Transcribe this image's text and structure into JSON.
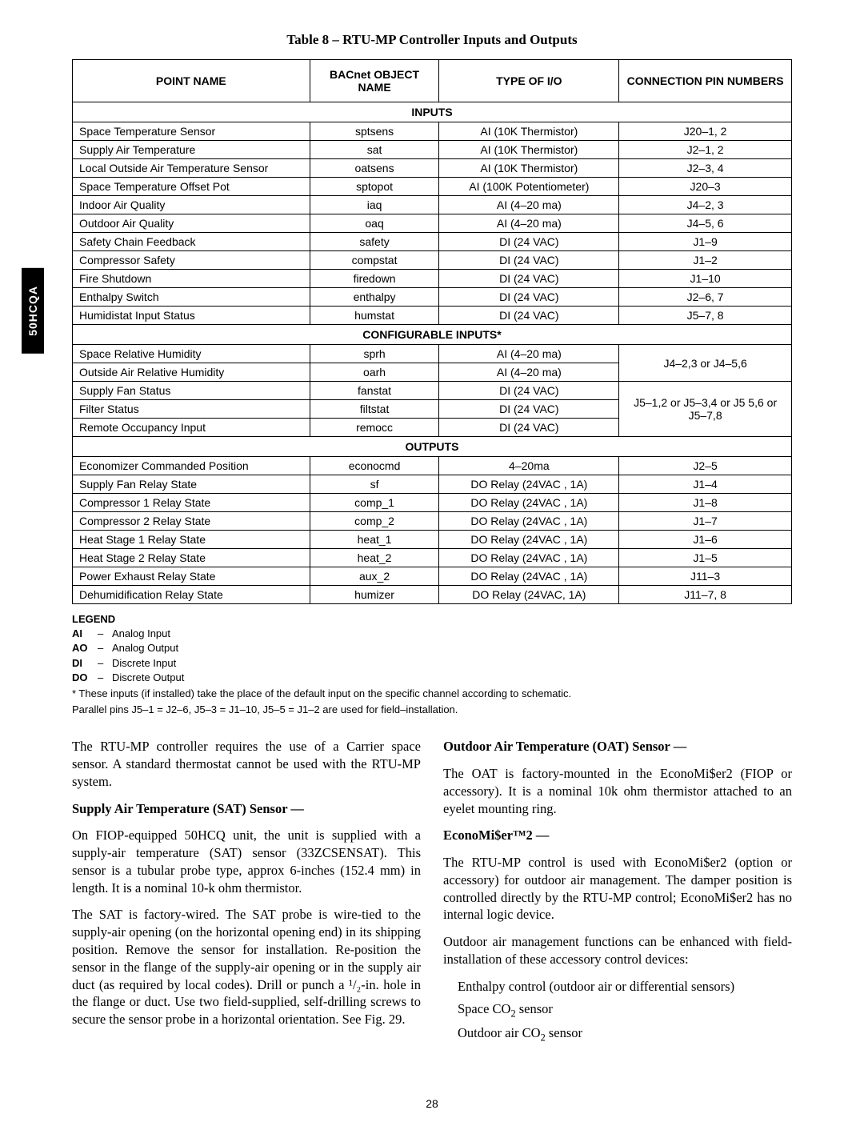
{
  "side_tab": "50HCQA",
  "table_title": "Table 8 – RTU-MP Controller Inputs and Outputs",
  "headers": {
    "point_name": "POINT NAME",
    "bacnet": "BACnet OBJECT NAME",
    "type": "TYPE OF I/O",
    "conn": "CONNECTION PIN NUMBERS"
  },
  "sections": {
    "inputs": "INPUTS",
    "config": "CONFIGURABLE INPUTS*",
    "outputs": "OUTPUTS"
  },
  "inputs": [
    {
      "pn": "Space Temperature Sensor",
      "bn": "sptsens",
      "ty": "AI (10K Thermistor)",
      "cp": "J20–1, 2"
    },
    {
      "pn": "Supply Air Temperature",
      "bn": "sat",
      "ty": "AI (10K Thermistor)",
      "cp": "J2–1, 2"
    },
    {
      "pn": "Local Outside Air Temperature Sensor",
      "bn": "oatsens",
      "ty": "AI (10K Thermistor)",
      "cp": "J2–3, 4"
    },
    {
      "pn": "Space Temperature Offset Pot",
      "bn": "sptopot",
      "ty": "AI (100K Potentiometer)",
      "cp": "J20–3"
    },
    {
      "pn": "Indoor Air Quality",
      "bn": "iaq",
      "ty": "AI (4–20 ma)",
      "cp": "J4–2, 3"
    },
    {
      "pn": "Outdoor Air Quality",
      "bn": "oaq",
      "ty": "AI (4–20 ma)",
      "cp": "J4–5, 6"
    },
    {
      "pn": "Safety Chain Feedback",
      "bn": "safety",
      "ty": "DI (24 VAC)",
      "cp": "J1–9"
    },
    {
      "pn": "Compressor Safety",
      "bn": "compstat",
      "ty": "DI (24 VAC)",
      "cp": "J1–2"
    },
    {
      "pn": "Fire Shutdown",
      "bn": "firedown",
      "ty": "DI (24 VAC)",
      "cp": "J1–10"
    },
    {
      "pn": "Enthalpy Switch",
      "bn": "enthalpy",
      "ty": "DI (24 VAC)",
      "cp": "J2–6, 7"
    },
    {
      "pn": "Humidistat Input Status",
      "bn": "humstat",
      "ty": "DI (24 VAC)",
      "cp": "J5–7, 8"
    }
  ],
  "config_inputs": {
    "groupA_cp": "J4–2,3 or J4–5,6",
    "groupA": [
      {
        "pn": "Space Relative Humidity",
        "bn": "sprh",
        "ty": "AI (4–20 ma)"
      },
      {
        "pn": "Outside Air Relative Humidity",
        "bn": "oarh",
        "ty": "AI (4–20 ma)"
      }
    ],
    "groupB_cp": "J5–1,2 or J5–3,4 or J5 5,6 or J5–7,8",
    "groupB": [
      {
        "pn": "Supply Fan Status",
        "bn": "fanstat",
        "ty": "DI (24 VAC)"
      },
      {
        "pn": "Filter Status",
        "bn": "filtstat",
        "ty": "DI (24 VAC)"
      },
      {
        "pn": "Remote Occupancy Input",
        "bn": "remocc",
        "ty": "DI (24 VAC)"
      }
    ]
  },
  "outputs": [
    {
      "pn": "Economizer Commanded Position",
      "bn": "econocmd",
      "ty": "4–20ma",
      "cp": "J2–5"
    },
    {
      "pn": "Supply Fan Relay State",
      "bn": "sf",
      "ty": "DO Relay (24VAC , 1A)",
      "cp": "J1–4"
    },
    {
      "pn": "Compressor 1 Relay State",
      "bn": "comp_1",
      "ty": "DO Relay (24VAC , 1A)",
      "cp": "J1–8"
    },
    {
      "pn": "Compressor 2 Relay State",
      "bn": "comp_2",
      "ty": "DO Relay (24VAC , 1A)",
      "cp": "J1–7"
    },
    {
      "pn": "Heat Stage 1 Relay State",
      "bn": "heat_1",
      "ty": "DO Relay (24VAC , 1A)",
      "cp": "J1–6"
    },
    {
      "pn": "Heat Stage 2 Relay State",
      "bn": "heat_2",
      "ty": "DO Relay (24VAC , 1A)",
      "cp": "J1–5"
    },
    {
      "pn": "Power Exhaust Relay State",
      "bn": "aux_2",
      "ty": "DO Relay (24VAC , 1A)",
      "cp": "J11–3"
    },
    {
      "pn": "Dehumidification Relay State",
      "bn": "humizer",
      "ty": "DO Relay (24VAC, 1A)",
      "cp": "J11–7, 8"
    }
  ],
  "legend": {
    "title": "LEGEND",
    "items": [
      {
        "abbr": "AI",
        "def": "Analog Input"
      },
      {
        "abbr": "AO",
        "def": "Analog Output"
      },
      {
        "abbr": "DI",
        "def": "Discrete Input"
      },
      {
        "abbr": "DO",
        "def": "Discrete Output"
      }
    ],
    "star": "*   These inputs (if installed) take the place of the default input on the specific channel according to schematic.",
    "note": "Parallel pins J5–1 = J2–6, J5–3 = J1–10, J5–5 = J1–2 are used for field–installation."
  },
  "body": {
    "left": {
      "p1": "The RTU-MP controller requires the use of a Carrier space sensor. A standard thermostat cannot be used with the RTU-MP system.",
      "h1": "Supply Air Temperature (SAT) Sensor —",
      "p2": "On FIOP-equipped 50HCQ unit, the unit is supplied with a supply-air temperature (SAT) sensor (33ZCSENSAT). This sensor is a tubular probe type, approx 6-inches (152.4 mm) in length. It is a nominal 10-k ohm thermistor.",
      "p3": "The SAT is factory-wired. The SAT probe is wire-tied to the supply-air opening (on the horizontal opening end) in its shipping position. Remove the sensor for installation. Re-position the sensor in the flange of the supply-air opening or in the supply air duct (as required by local codes). Drill or punch a ¹/₂-in. hole in the flange or duct. Use two field-supplied, self-drilling screws to secure the sensor probe in a horizontal orientation. See Fig. 29."
    },
    "right": {
      "h1": "Outdoor Air Temperature (OAT) Sensor —",
      "p1": "The OAT is factory-mounted in the EconoMi$er2 (FIOP or accessory). It is a nominal 10k ohm thermistor attached to an eyelet mounting ring.",
      "h2": "EconoMi$er™2 —",
      "p2": "The RTU-MP control is used with EconoMi$er2 (option or accessory) for outdoor air management. The damper position is controlled directly by the RTU-MP control; EconoMi$er2 has no internal logic device.",
      "p3": "Outdoor air management functions can be enhanced with field-installation of these accessory control devices:",
      "li1": "Enthalpy control (outdoor air or differential sensors)",
      "li2_pre": "Space CO",
      "li2_post": " sensor",
      "li3_pre": "Outdoor air CO",
      "li3_post": " sensor"
    }
  },
  "page_number": "28"
}
